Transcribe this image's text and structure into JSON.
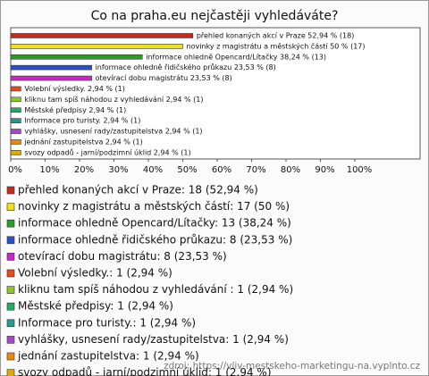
{
  "chart_data": {
    "type": "hbar",
    "title": "Co na praha.eu nejčastěji vyhledáváte?",
    "categories": [
      "přehled konaných akcí v Praze",
      "novinky z magistrátu a městských částí",
      "informace ohledně Opencard/Lítačky",
      "informace ohledně řidičského průkazu",
      "otevírací dobu magistrátu",
      "Volební výsledky.",
      "kliknu tam spíš náhodou z vyhledávání ",
      "Městské předpisy",
      "Informace pro turisty.",
      "vyhlášky, usnesení rady/zastupitelstva",
      "jednání zastupitelstva",
      "svozy odpadů - jarní/podzimní úklid"
    ],
    "values": [
      52.94,
      50,
      38.24,
      23.53,
      23.53,
      2.94,
      2.94,
      2.94,
      2.94,
      2.94,
      2.94,
      2.94
    ],
    "value_labels": [
      "přehled konaných akcí v Praze 52,94 % (18)",
      "novinky z magistrátu a městských částí 50 % (17)",
      "informace ohledně Opencard/Lítačky 38,24 % (13)",
      "informace ohledně řidičského průkazu 23,53 % (8)",
      "otevírací dobu magistrátu 23,53 % (8)",
      "Volební výsledky. 2,94 % (1)",
      "kliknu tam spíš náhodou z vyhledávání  2,94 % (1)",
      "Městské předpisy 2,94 % (1)",
      "Informace pro turisty. 2,94 % (1)",
      "vyhlášky, usnesení rady/zastupitelstva 2,94 % (1)",
      "jednání zastupitelstva 2,94 % (1)",
      "svozy odpadů - jarní/podzimní úklid 2,94 % (1)"
    ],
    "legend_labels": [
      "přehled konaných akcí v Praze: 18 (52,94 %)",
      "novinky z magistrátu a městských částí: 17 (50 %)",
      "informace ohledně Opencard/Lítačky: 13 (38,24 %)",
      "informace ohledně řidičského průkazu: 8 (23,53 %)",
      "otevírací dobu magistrátu: 8 (23,53 %)",
      "Volební výsledky.: 1 (2,94 %)",
      "kliknu tam spíš náhodou z vyhledávání : 1 (2,94 %)",
      "Městské předpisy: 1 (2,94 %)",
      "Informace pro turisty.: 1 (2,94 %)",
      "vyhlášky, usnesení rady/zastupitelstva: 1 (2,94 %)",
      "jednání zastupitelstva: 1 (2,94 %)",
      "svozy odpadů - jarní/podzimní úklid: 1 (2,94 %)"
    ],
    "colors": [
      "#c8281e",
      "#ece21c",
      "#28a028",
      "#2850c8",
      "#c828c8",
      "#e84a22",
      "#8ac82a",
      "#28a868",
      "#289890",
      "#a848c8",
      "#e88a10",
      "#dcaa10"
    ],
    "xlim": [
      0,
      100
    ],
    "xticks": [
      {
        "value": 0,
        "label": "0%"
      },
      {
        "value": 10,
        "label": "10%"
      },
      {
        "value": 20,
        "label": "20%"
      },
      {
        "value": 30,
        "label": "30%"
      },
      {
        "value": 40,
        "label": "40%"
      },
      {
        "value": 50,
        "label": "50%"
      },
      {
        "value": 60,
        "label": "60%"
      },
      {
        "value": 70,
        "label": "70%"
      },
      {
        "value": 80,
        "label": "80%"
      },
      {
        "value": 90,
        "label": "90%"
      },
      {
        "value": 100,
        "label": "100%"
      }
    ],
    "source": "zdroj: https://vliv-mestskeho-marketingu-na.vyplnto.cz"
  }
}
